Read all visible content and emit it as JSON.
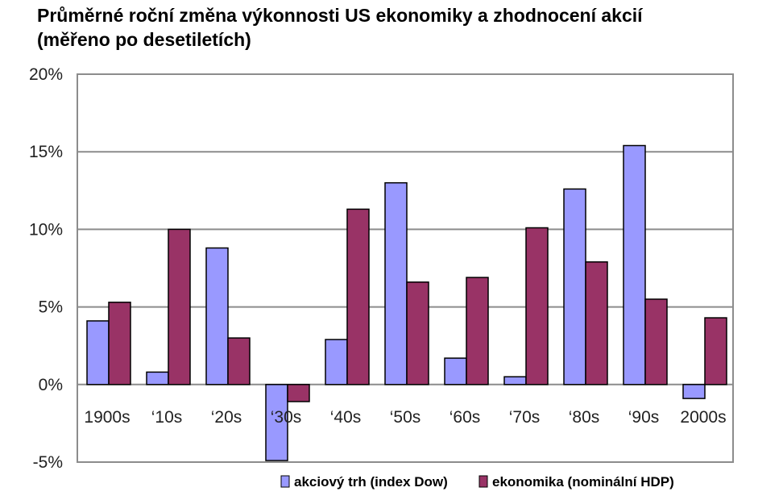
{
  "chart_data": {
    "type": "bar",
    "title_line1": "Průměrné roční změna výkonnosti US ekonomiky a zhodnocení akcií",
    "title_line2": "(měřeno po desetiletích)",
    "categories": [
      "1900s",
      "‘10s",
      "‘20s",
      "‘30s",
      "‘40s",
      "‘50s",
      "‘60s",
      "‘70s",
      "‘80s",
      "‘90s",
      "2000s"
    ],
    "series": [
      {
        "name": "akciový trh (index Dow)",
        "color": "#9999ff",
        "values": [
          4.1,
          0.8,
          8.8,
          -4.9,
          2.9,
          13.0,
          1.7,
          0.5,
          12.6,
          15.4,
          -0.9
        ]
      },
      {
        "name": "ekonomika (nominální HDP)",
        "color": "#993366",
        "values": [
          5.3,
          10.0,
          3.0,
          -1.1,
          11.3,
          6.6,
          6.9,
          10.1,
          7.9,
          5.5,
          4.3
        ]
      }
    ],
    "y_ticks": [
      "20%",
      "15%",
      "10%",
      "5%",
      "0%",
      "-5%"
    ],
    "ylim": [
      -5,
      20
    ],
    "grid": true,
    "legend_position": "bottom-right"
  }
}
